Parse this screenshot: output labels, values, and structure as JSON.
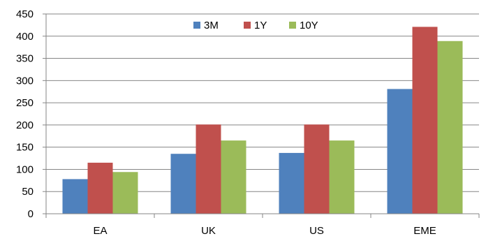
{
  "chart_data": {
    "type": "bar",
    "title": "",
    "xlabel": "",
    "ylabel": "",
    "categories": [
      "EA",
      "UK",
      "US",
      "EME"
    ],
    "series": [
      {
        "name": "3M",
        "color": "#4f81bd",
        "values": [
          78,
          135,
          137,
          281
        ]
      },
      {
        "name": "1Y",
        "color": "#c0504d",
        "values": [
          115,
          201,
          201,
          421
        ]
      },
      {
        "name": "10Y",
        "color": "#9bbb59",
        "values": [
          94,
          165,
          165,
          389
        ]
      }
    ],
    "ylim": [
      0,
      450
    ],
    "yticks": [
      "0",
      "50",
      "100",
      "150",
      "200",
      "250",
      "300",
      "350",
      "400",
      "450"
    ],
    "grid": true,
    "legend_position": "top-center"
  }
}
